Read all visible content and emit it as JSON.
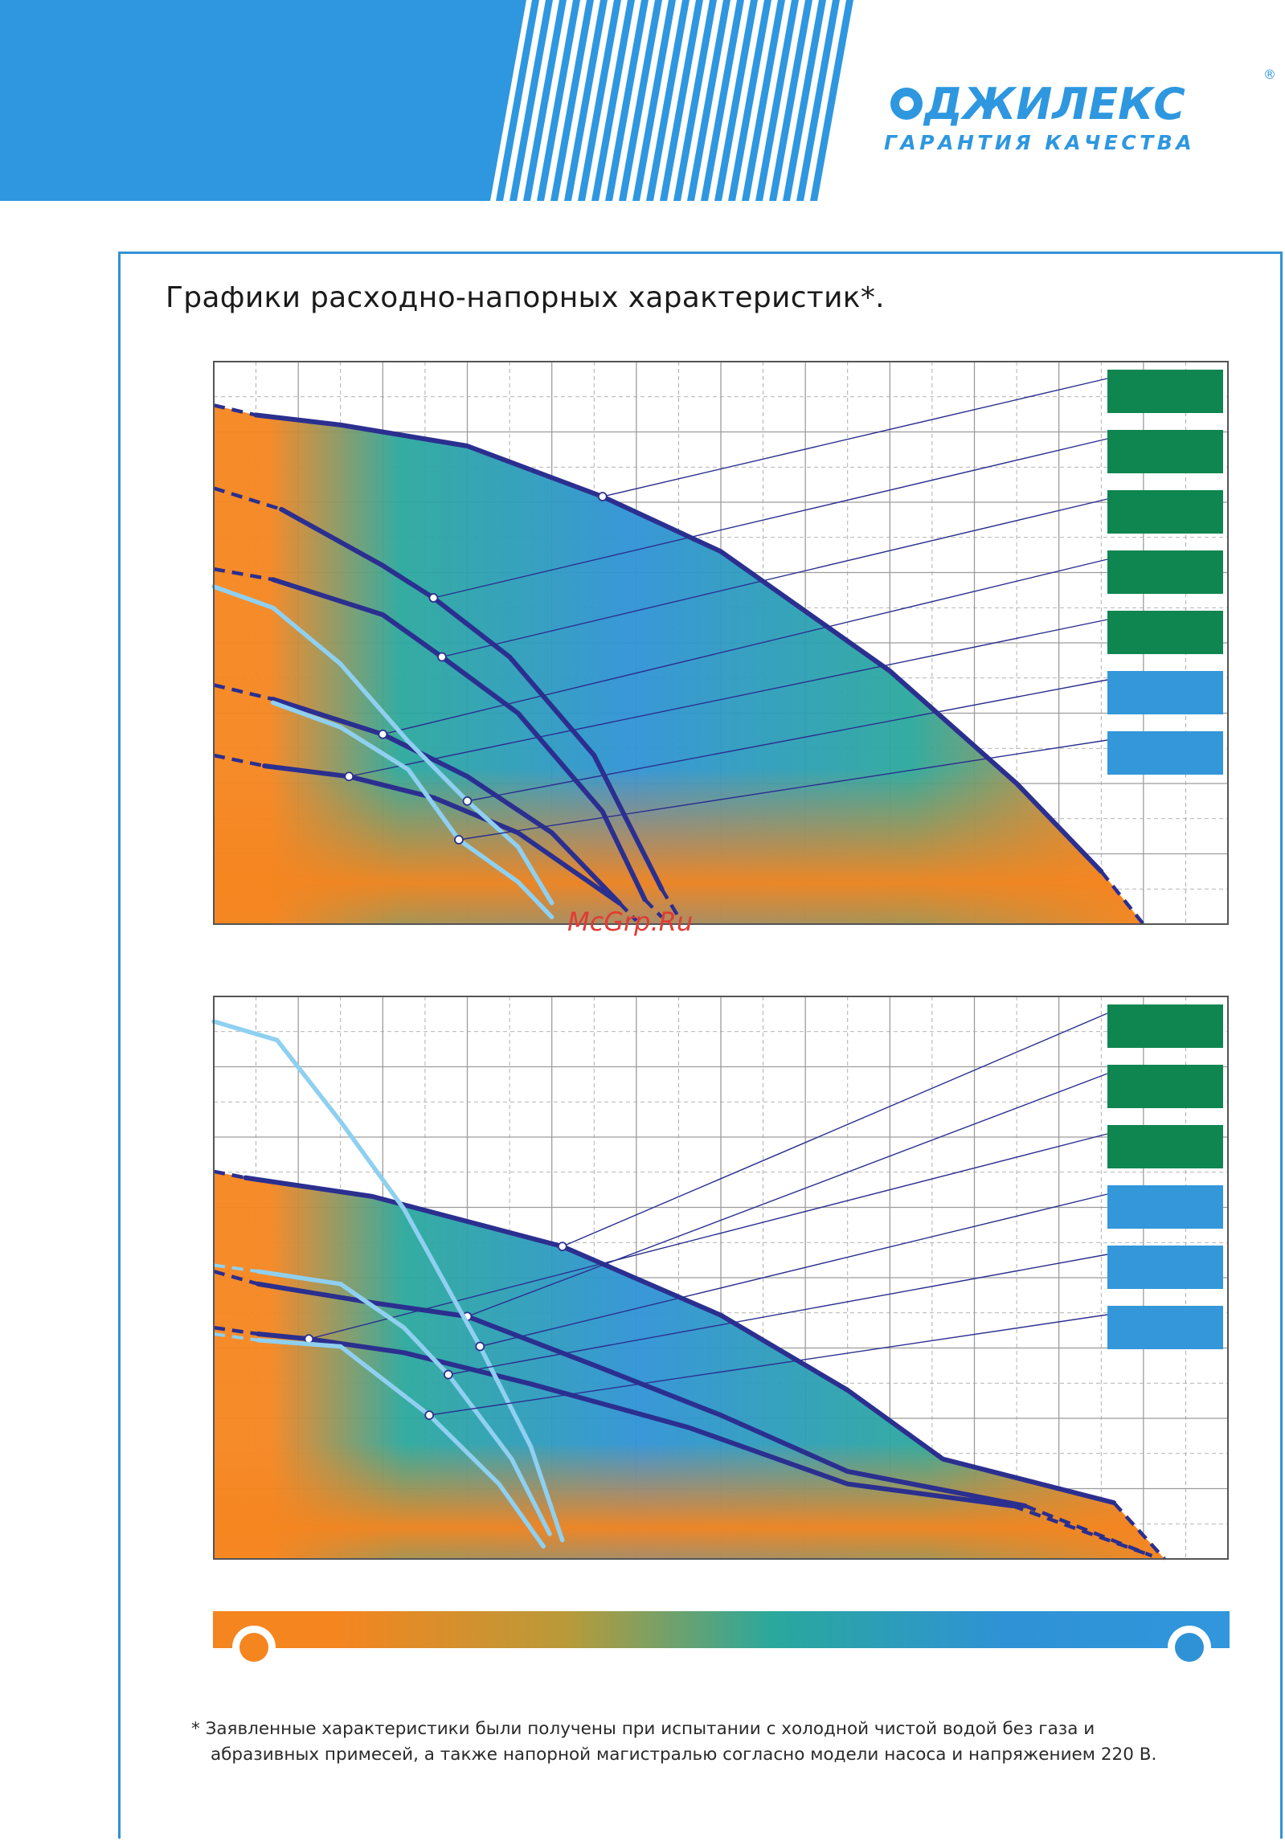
{
  "brand": {
    "name": "ДЖИЛЕКС",
    "registered": "®",
    "tagline": "ГАРАНТИЯ КАЧЕСТВА",
    "colors": {
      "blue": "#2e97df",
      "stripes": "#2e97df"
    }
  },
  "page": {
    "title": "Графики расходно-напорных характеристик*.",
    "footnote_line1": "* Заявленные характеристики были получены при испытании с холодной чистой водой без газа и",
    "footnote_line2": "абразивных примесей, а также напорной магистралью согласно модели насоса и напряжением  220 В.",
    "watermark": "McGrp.Ru"
  },
  "colors": {
    "curve_dark": "#2b2f8f",
    "curve_light": "#8fd0f0",
    "legend_green": "#0f8650",
    "legend_blue": "#3397da",
    "gradient_orange": "#f5851f",
    "gradient_teal": "#2aa89c",
    "gradient_blue": "#2f92d6",
    "grid": "#9c9c9c"
  },
  "chart_data": [
    {
      "type": "line",
      "title": "",
      "xlabel": "",
      "ylabel": "",
      "grid": true,
      "x_range": [
        0,
        12
      ],
      "y_range": [
        0,
        8
      ],
      "legend_position": "right",
      "legend": [
        {
          "color": "green",
          "label": ""
        },
        {
          "color": "green",
          "label": ""
        },
        {
          "color": "green",
          "label": ""
        },
        {
          "color": "green",
          "label": ""
        },
        {
          "color": "green",
          "label": ""
        },
        {
          "color": "blue",
          "label": ""
        },
        {
          "color": "blue",
          "label": ""
        }
      ],
      "series": [
        {
          "style": "dark",
          "legend_index": 0,
          "marker_x": 4.6,
          "points": [
            [
              0.5,
              7.24
            ],
            [
              1.5,
              7.1
            ],
            [
              3.0,
              6.8
            ],
            [
              4.6,
              6.08
            ],
            [
              6.0,
              5.3
            ],
            [
              8.0,
              3.6
            ],
            [
              9.5,
              2.0
            ],
            [
              10.5,
              0.75
            ]
          ],
          "dashed_start": [
            [
              0.0,
              7.38
            ],
            [
              0.5,
              7.24
            ]
          ],
          "dashed_end": [
            [
              10.5,
              0.75
            ],
            [
              11.0,
              0.0
            ]
          ]
        },
        {
          "style": "dark",
          "legend_index": 1,
          "marker_x": 2.6,
          "points": [
            [
              0.8,
              5.9
            ],
            [
              2.0,
              5.1
            ],
            [
              2.6,
              4.64
            ],
            [
              3.5,
              3.8
            ],
            [
              4.5,
              2.4
            ],
            [
              5.3,
              0.5
            ]
          ],
          "dashed_start": [
            [
              0.0,
              6.2
            ],
            [
              0.8,
              5.9
            ]
          ],
          "dashed_end": [
            [
              5.3,
              0.5
            ],
            [
              5.5,
              0.1
            ]
          ]
        },
        {
          "style": "dark",
          "legend_index": 2,
          "marker_x": 2.7,
          "points": [
            [
              0.7,
              4.9
            ],
            [
              2.0,
              4.4
            ],
            [
              2.7,
              3.8
            ],
            [
              3.6,
              3.0
            ],
            [
              4.6,
              1.6
            ],
            [
              5.1,
              0.35
            ]
          ],
          "dashed_start": [
            [
              0.0,
              5.05
            ],
            [
              0.7,
              4.9
            ]
          ],
          "dashed_end": [
            [
              5.1,
              0.35
            ],
            [
              5.3,
              0.1
            ]
          ]
        },
        {
          "style": "dark",
          "legend_index": 3,
          "marker_x": 2.0,
          "points": [
            [
              0.7,
              3.2
            ],
            [
              2.0,
              2.7
            ],
            [
              3.0,
              2.1
            ],
            [
              4.0,
              1.3
            ],
            [
              4.8,
              0.3
            ]
          ],
          "dashed_start": [
            [
              0.0,
              3.4
            ],
            [
              0.7,
              3.2
            ]
          ],
          "dashed_end": [
            [
              4.8,
              0.3
            ],
            [
              5.0,
              0.05
            ]
          ]
        },
        {
          "style": "dark",
          "legend_index": 4,
          "marker_x": 1.6,
          "points": [
            [
              0.6,
              2.25
            ],
            [
              1.6,
              2.1
            ],
            [
              2.6,
              1.8
            ],
            [
              3.6,
              1.3
            ],
            [
              4.8,
              0.3
            ]
          ],
          "dashed_start": [
            [
              0.0,
              2.4
            ],
            [
              0.6,
              2.25
            ]
          ],
          "dashed_end": [
            [
              4.8,
              0.3
            ],
            [
              5.0,
              0.05
            ]
          ]
        },
        {
          "style": "light",
          "legend_index": 5,
          "marker_x": 3.0,
          "points": [
            [
              0.0,
              4.8
            ],
            [
              0.7,
              4.5
            ],
            [
              1.5,
              3.7
            ],
            [
              2.3,
              2.6
            ],
            [
              3.0,
              1.75
            ],
            [
              3.6,
              1.1
            ],
            [
              4.0,
              0.3
            ]
          ]
        },
        {
          "style": "light",
          "legend_index": 6,
          "marker_x": 2.9,
          "points": [
            [
              0.7,
              3.15
            ],
            [
              1.5,
              2.8
            ],
            [
              2.3,
              2.2
            ],
            [
              2.9,
              1.2
            ],
            [
              3.6,
              0.6
            ],
            [
              4.0,
              0.1
            ]
          ]
        }
      ]
    },
    {
      "type": "line",
      "title": "",
      "xlabel": "",
      "ylabel": "",
      "grid": true,
      "x_range": [
        0,
        16
      ],
      "y_range": [
        0,
        9
      ],
      "legend_position": "right",
      "legend": [
        {
          "color": "green",
          "label": ""
        },
        {
          "color": "green",
          "label": ""
        },
        {
          "color": "green",
          "label": ""
        },
        {
          "color": "blue",
          "label": ""
        },
        {
          "color": "blue",
          "label": ""
        },
        {
          "color": "blue",
          "label": ""
        }
      ],
      "series": [
        {
          "style": "dark",
          "legend_index": 0,
          "marker_x": 5.5,
          "points": [
            [
              0.5,
              6.1
            ],
            [
              2.5,
              5.8
            ],
            [
              5.5,
              5.0
            ],
            [
              8.0,
              3.9
            ],
            [
              10.0,
              2.7
            ],
            [
              11.5,
              1.6
            ],
            [
              14.2,
              0.9
            ]
          ],
          "dashed_start": [
            [
              0.0,
              6.2
            ],
            [
              0.5,
              6.1
            ]
          ],
          "dashed_end": [
            [
              14.2,
              0.9
            ],
            [
              15.0,
              0.0
            ]
          ]
        },
        {
          "style": "dark",
          "legend_index": 1,
          "marker_x": 4.0,
          "points": [
            [
              0.7,
              4.4
            ],
            [
              2.5,
              4.1
            ],
            [
              4.0,
              3.88
            ],
            [
              6.0,
              3.1
            ],
            [
              8.0,
              2.3
            ],
            [
              10.0,
              1.4
            ],
            [
              12.8,
              0.85
            ]
          ],
          "dashed_start": [
            [
              0.0,
              4.6
            ],
            [
              0.7,
              4.4
            ]
          ],
          "dashed_end": [
            [
              12.8,
              0.85
            ],
            [
              14.8,
              0.05
            ]
          ]
        },
        {
          "style": "dark",
          "legend_index": 2,
          "marker_x": 1.5,
          "points": [
            [
              0.7,
              3.6
            ],
            [
              1.5,
              3.52
            ],
            [
              3.0,
              3.3
            ],
            [
              5.0,
              2.8
            ],
            [
              7.5,
              2.1
            ],
            [
              10.0,
              1.2
            ],
            [
              12.6,
              0.85
            ]
          ],
          "dashed_start": [
            [
              0.0,
              3.7
            ],
            [
              0.7,
              3.6
            ]
          ],
          "dashed_end": [
            [
              12.6,
              0.85
            ],
            [
              14.8,
              0.05
            ]
          ]
        },
        {
          "style": "light",
          "legend_index": 3,
          "marker_x": 4.2,
          "points": [
            [
              0.0,
              8.6
            ],
            [
              1.0,
              8.3
            ],
            [
              2.0,
              7.0
            ],
            [
              3.0,
              5.6
            ],
            [
              4.2,
              3.4
            ],
            [
              5.0,
              1.8
            ],
            [
              5.5,
              0.3
            ]
          ]
        },
        {
          "style": "light",
          "legend_index": 4,
          "marker_x": 3.7,
          "points": [
            [
              0.7,
              4.6
            ],
            [
              2.0,
              4.4
            ],
            [
              3.0,
              3.7
            ],
            [
              3.7,
              2.95
            ],
            [
              4.7,
              1.6
            ],
            [
              5.3,
              0.4
            ]
          ],
          "dashed_start": [
            [
              0.0,
              4.7
            ],
            [
              0.7,
              4.6
            ]
          ]
        },
        {
          "style": "light",
          "legend_index": 5,
          "marker_x": 3.4,
          "points": [
            [
              0.7,
              3.5
            ],
            [
              2.0,
              3.4
            ],
            [
              3.4,
              2.3
            ],
            [
              4.5,
              1.2
            ],
            [
              5.2,
              0.2
            ]
          ],
          "dashed_start": [
            [
              0.0,
              3.6
            ],
            [
              0.7,
              3.5
            ]
          ]
        }
      ]
    }
  ]
}
